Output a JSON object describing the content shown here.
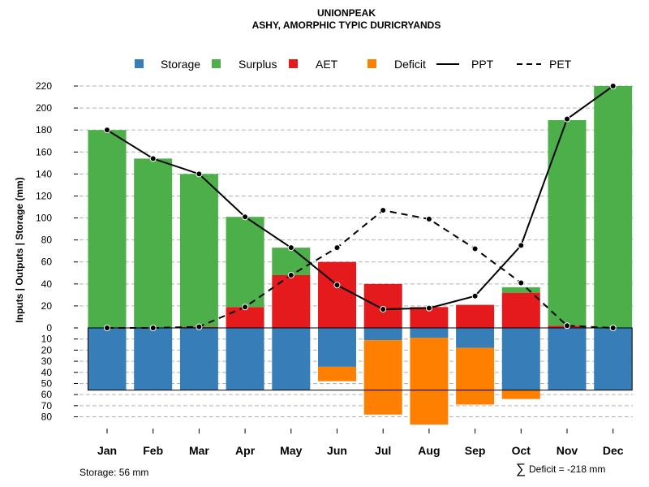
{
  "chart_data": {
    "type": "bar",
    "title": "UNIONPEAK",
    "subtitle": "ASHY, AMORPHIC TYPIC DURICRYANDS",
    "ylabel": "Inputs | Outputs | Storage    (mm)",
    "categories": [
      "Jan",
      "Feb",
      "Mar",
      "Apr",
      "May",
      "Jun",
      "Jul",
      "Aug",
      "Sep",
      "Oct",
      "Nov",
      "Dec"
    ],
    "legend": {
      "storage": "Storage",
      "surplus": "Surplus",
      "aet": "AET",
      "deficit": "Deficit",
      "ppt": "PPT",
      "pet": "PET"
    },
    "colors": {
      "storage": "#377EB8",
      "surplus": "#4DAF4A",
      "aet": "#E41A1C",
      "deficit": "#FF7F00",
      "line": "#000000",
      "grid": "#b3b3b3"
    },
    "upper_ticks": [
      "0",
      "20",
      "40",
      "60",
      "80",
      "100",
      "120",
      "140",
      "160",
      "180",
      "200",
      "220"
    ],
    "lower_ticks": [
      "10",
      "20",
      "30",
      "40",
      "50",
      "60",
      "70",
      "80"
    ],
    "upper_ylim": [
      0,
      220
    ],
    "lower_ylim": [
      0,
      80
    ],
    "series": [
      {
        "name": "Storage",
        "values": [
          56,
          56,
          56,
          56,
          56,
          35,
          11,
          9,
          18,
          56,
          56,
          56
        ]
      },
      {
        "name": "AET",
        "values": [
          0,
          0,
          1,
          19,
          48,
          60,
          40,
          19,
          21,
          32,
          2,
          0
        ]
      },
      {
        "name": "Surplus",
        "values": [
          180,
          154,
          139,
          82,
          25,
          0,
          0,
          0,
          0,
          5,
          187,
          220
        ]
      },
      {
        "name": "Deficit",
        "values": [
          0,
          0,
          0,
          0,
          0,
          13,
          67,
          78,
          51,
          8,
          0,
          0
        ]
      },
      {
        "name": "PPT",
        "values": [
          180,
          154,
          140,
          101,
          73,
          39,
          17,
          18,
          29,
          75,
          190,
          220
        ]
      },
      {
        "name": "PET",
        "values": [
          0,
          0,
          1,
          19,
          48,
          73,
          107,
          99,
          72,
          41,
          2,
          0
        ]
      }
    ],
    "storage_capacity": 56,
    "footer_storage": "Storage: 56 mm",
    "footer_deficit": "Deficit = -218 mm",
    "footer_symbol": "∑"
  }
}
